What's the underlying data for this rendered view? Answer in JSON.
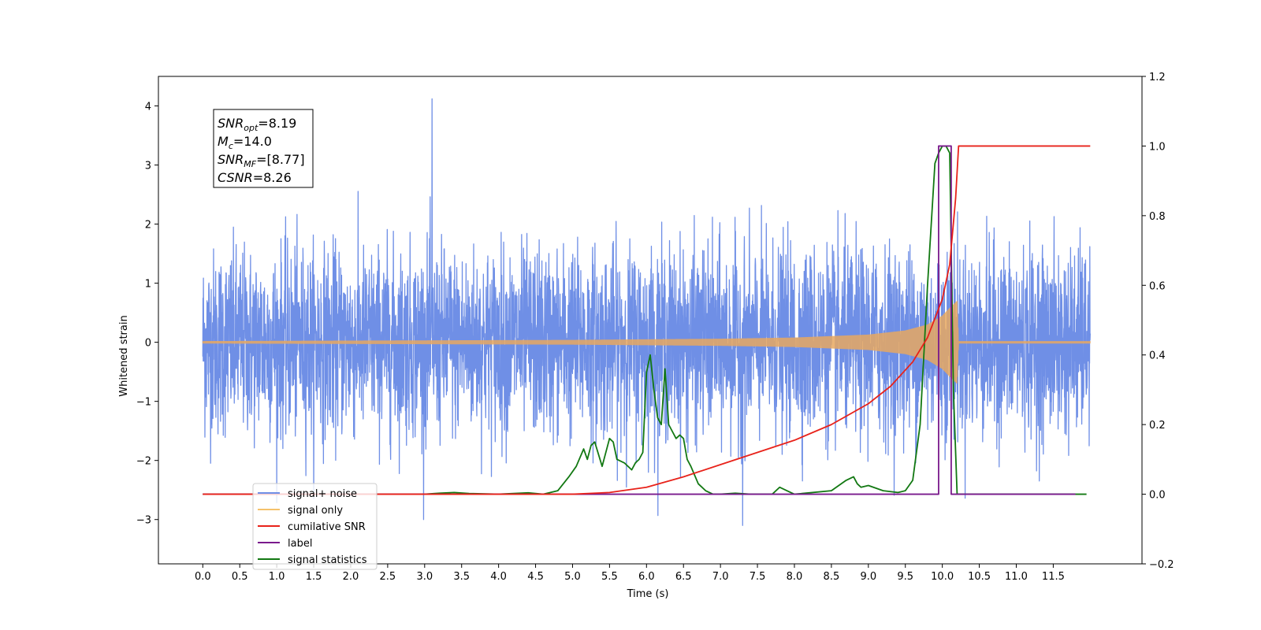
{
  "chart_data": {
    "type": "line",
    "xlabel": "Time (s)",
    "ylabel": "Whitened strain",
    "xlim": [
      -0.6,
      12.7
    ],
    "ylim_left": [
      -3.75,
      4.5
    ],
    "ylim_right": [
      -0.2,
      1.2
    ],
    "x_ticks": [
      "0.0",
      "0.5",
      "1.0",
      "1.5",
      "2.0",
      "2.5",
      "3.0",
      "3.5",
      "4.0",
      "4.5",
      "5.0",
      "5.5",
      "6.0",
      "6.5",
      "7.0",
      "7.5",
      "8.0",
      "8.5",
      "9.0",
      "9.5",
      "10.0",
      "10.5",
      "11.0",
      "11.5"
    ],
    "y_ticks_left": [
      "−3",
      "−2",
      "−1",
      "0",
      "1",
      "2",
      "3",
      "4"
    ],
    "y_ticks_right": [
      "−0.2",
      "0.0",
      "0.2",
      "0.4",
      "0.6",
      "0.8",
      "1.0",
      "1.2"
    ],
    "grid": false,
    "legend_position": "bottom-left",
    "legend": [
      {
        "label": "signal+ noise",
        "color": "#6f8fe6"
      },
      {
        "label": "signal only",
        "color": "#f5c26b"
      },
      {
        "label": "cumilative SNR",
        "color": "#e8221a"
      },
      {
        "label": "label",
        "color": "#7a1a8c"
      },
      {
        "label": "signal statistics",
        "color": "#127812"
      }
    ],
    "annotation": {
      "lines": [
        {
          "base": "SNR",
          "sub": "opt",
          "rest": "=8.19"
        },
        {
          "base": "M",
          "sub": "c",
          "rest": "=14.0"
        },
        {
          "base": "SNR",
          "sub": "MF",
          "rest": "=[8.77]"
        },
        {
          "base": "CSNR",
          "sub": "",
          "rest": "=8.26"
        }
      ]
    },
    "series": [
      {
        "name": "signal+ noise",
        "axis": "left",
        "x_range": [
          0.0,
          12.0
        ],
        "amplitude_typical": 1.1,
        "max": 4.12,
        "min": -3.1,
        "color": "#6f8fe6"
      },
      {
        "name": "signal only",
        "axis": "left",
        "envelope_x": [
          0.0,
          5.0,
          7.0,
          8.0,
          9.0,
          9.5,
          9.8,
          10.0,
          10.1,
          10.2,
          10.22,
          12.0
        ],
        "envelope_y": [
          0.02,
          0.04,
          0.06,
          0.08,
          0.13,
          0.2,
          0.3,
          0.45,
          0.58,
          0.7,
          0.02,
          0.02
        ],
        "color": "#e8a860"
      },
      {
        "name": "cumilative SNR",
        "axis": "right",
        "x": [
          0.0,
          5.0,
          5.5,
          6.0,
          6.5,
          7.0,
          7.5,
          8.0,
          8.5,
          9.0,
          9.3,
          9.6,
          9.8,
          10.0,
          10.1,
          10.18,
          10.22,
          12.0
        ],
        "y": [
          0.0,
          0.0,
          0.005,
          0.02,
          0.05,
          0.085,
          0.12,
          0.155,
          0.2,
          0.26,
          0.31,
          0.38,
          0.45,
          0.56,
          0.66,
          0.85,
          1.0,
          1.0
        ],
        "color": "#e8221a"
      },
      {
        "name": "label",
        "axis": "right",
        "x": [
          0.0,
          9.95,
          9.95,
          10.12,
          10.12,
          11.8
        ],
        "y": [
          0.0,
          0.0,
          1.0,
          1.0,
          0.0,
          0.0
        ],
        "color": "#7a1a8c"
      },
      {
        "name": "signal statistics",
        "axis": "right",
        "x": [
          0.0,
          1.0,
          2.0,
          3.0,
          3.2,
          3.4,
          3.6,
          4.0,
          4.4,
          4.6,
          4.8,
          4.95,
          5.05,
          5.15,
          5.2,
          5.25,
          5.3,
          5.4,
          5.5,
          5.55,
          5.6,
          5.7,
          5.8,
          5.85,
          5.9,
          5.95,
          6.0,
          6.05,
          6.1,
          6.15,
          6.2,
          6.25,
          6.3,
          6.35,
          6.4,
          6.45,
          6.5,
          6.55,
          6.6,
          6.7,
          6.8,
          6.9,
          7.0,
          7.2,
          7.4,
          7.7,
          7.8,
          7.9,
          8.0,
          8.5,
          8.7,
          8.8,
          8.85,
          8.9,
          9.0,
          9.2,
          9.4,
          9.5,
          9.6,
          9.7,
          9.8,
          9.9,
          9.95,
          10.0,
          10.05,
          10.1,
          10.15,
          10.2,
          10.25,
          10.3,
          11.0,
          11.5,
          11.95
        ],
        "y": [
          0.0,
          0.0,
          0.0,
          0.0,
          0.003,
          0.005,
          0.002,
          0.0,
          0.004,
          0.0,
          0.01,
          0.05,
          0.08,
          0.13,
          0.1,
          0.14,
          0.15,
          0.08,
          0.16,
          0.15,
          0.1,
          0.09,
          0.07,
          0.09,
          0.1,
          0.12,
          0.35,
          0.4,
          0.3,
          0.22,
          0.2,
          0.36,
          0.2,
          0.18,
          0.16,
          0.17,
          0.16,
          0.1,
          0.08,
          0.03,
          0.01,
          0.0,
          0.0,
          0.003,
          0.0,
          0.0,
          0.02,
          0.01,
          0.0,
          0.01,
          0.04,
          0.05,
          0.03,
          0.02,
          0.025,
          0.01,
          0.005,
          0.01,
          0.04,
          0.2,
          0.6,
          0.95,
          0.98,
          1.0,
          1.0,
          0.98,
          0.3,
          0.0,
          0.0,
          0.0,
          0.0,
          0.0,
          0.0
        ],
        "color": "#127812"
      }
    ]
  }
}
